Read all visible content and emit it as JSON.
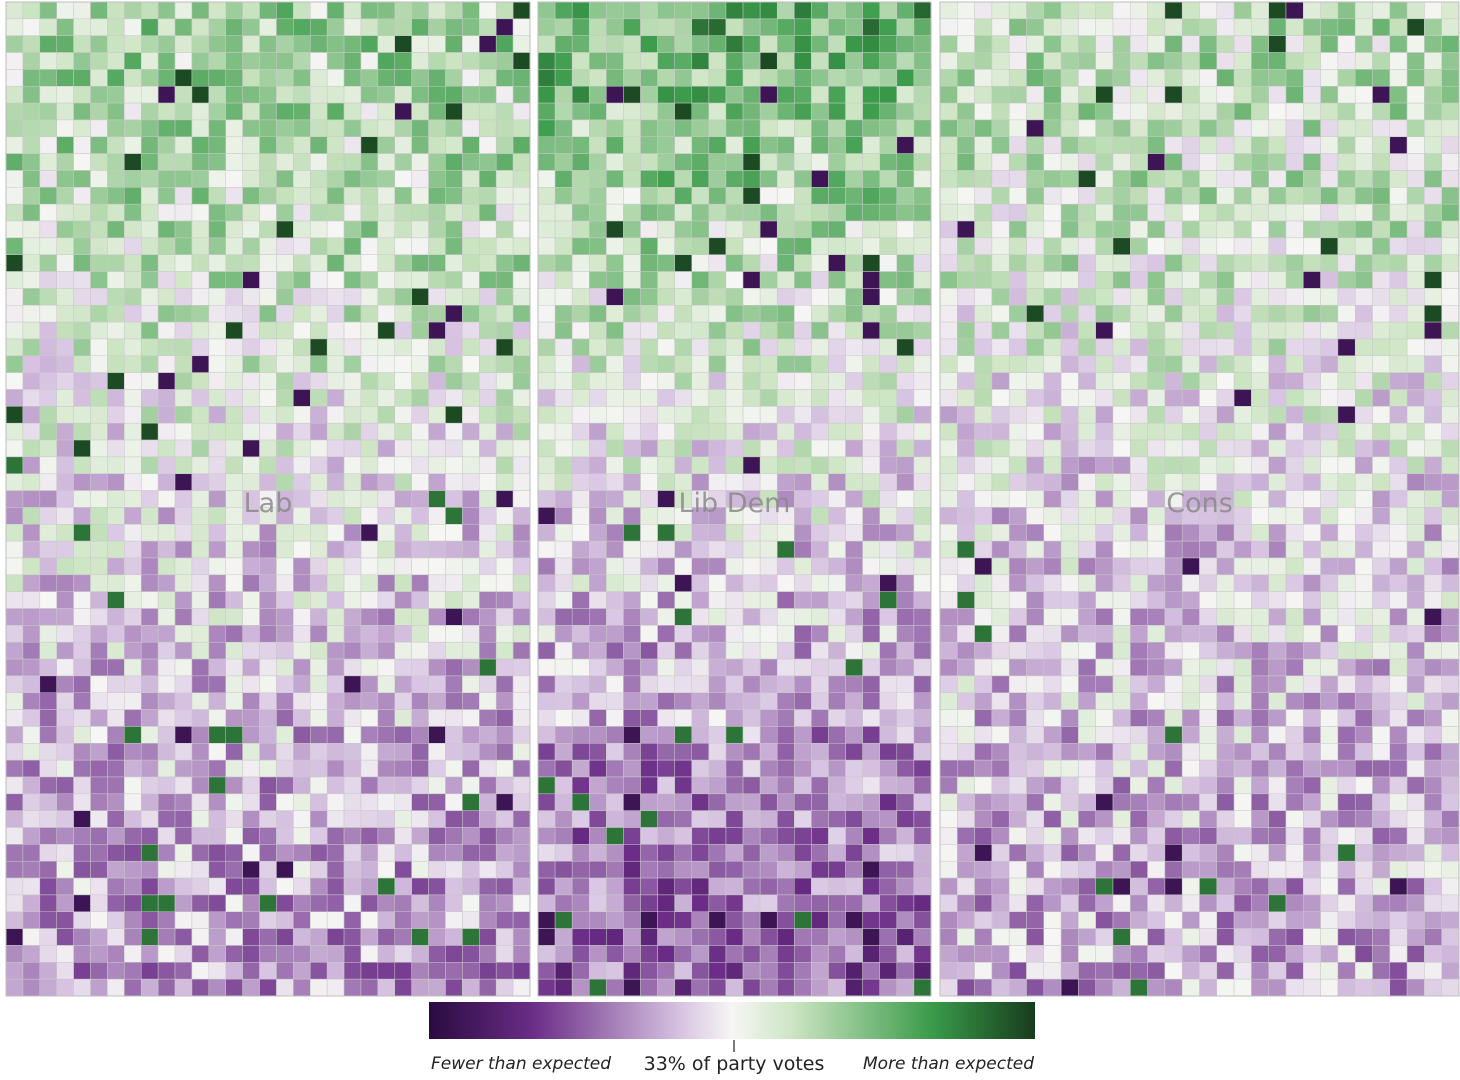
{
  "chart_data": {
    "type": "heatmap",
    "title": "",
    "xlabel": "",
    "ylabel": "",
    "panels": [
      {
        "name": "Lab",
        "cols": 31,
        "rows": 59,
        "seed": 11,
        "profile": [
          0.3,
          0.2,
          -0.05,
          -0.2,
          -0.32
        ]
      },
      {
        "name": "Lib Dem",
        "cols": 23,
        "rows": 59,
        "seed": 23,
        "profile": [
          0.55,
          0.22,
          -0.05,
          -0.33,
          -0.48
        ]
      },
      {
        "name": "Cons",
        "cols": 30,
        "rows": 59,
        "seed": 37,
        "profile": [
          0.24,
          0.14,
          -0.08,
          -0.18,
          -0.26
        ]
      }
    ],
    "color_scale": {
      "min": "#2a0b40",
      "low": "#6a2c86",
      "mid_low": "#d9c6e3",
      "center": "#f6f6f4",
      "mid_high": "#cde5c3",
      "high": "#3a9b4a",
      "max": "#173c1c"
    },
    "legend": {
      "left_label": "Fewer than expected",
      "center_label": "33% of party votes",
      "right_label": "More than expected"
    }
  }
}
